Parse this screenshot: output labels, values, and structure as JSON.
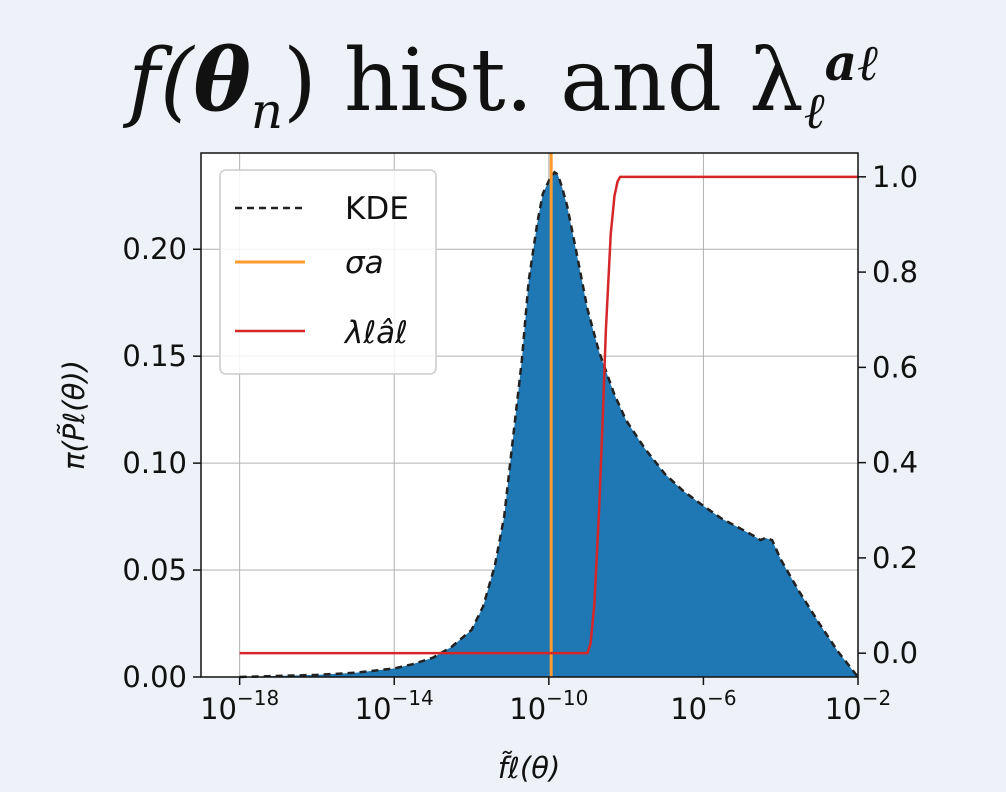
{
  "page": {
    "title_parts": [
      "f(",
      "θ",
      "n",
      ") hist. and λ",
      "ℓ",
      "a",
      "ℓ"
    ]
  },
  "colors": {
    "histogram": "#1f77b4",
    "kde": "#222222",
    "sigma": "#ff9b2e",
    "lambda": "#d62728",
    "background": "#eef2f8",
    "plot_bg": "#ffffff",
    "grid": "#b0b0b0"
  },
  "chart_data": {
    "type": "area",
    "grid": true,
    "x_scale": "log",
    "xlabel": "f̃ℓ(θ)",
    "ylabel": "π(P̃ℓ(θ))",
    "ylabel_right": "",
    "xlim": [
      1e-19,
      0.01
    ],
    "ylim": [
      0,
      0.245
    ],
    "ylim_right": [
      -0.05,
      1.05
    ],
    "x_ticks": [
      {
        "value": 1e-18,
        "label": "10",
        "exp": "−18"
      },
      {
        "value": 1e-14,
        "label": "10",
        "exp": "−14"
      },
      {
        "value": 1e-10,
        "label": "10",
        "exp": "−10"
      },
      {
        "value": 1e-06,
        "label": "10",
        "exp": "−6"
      },
      {
        "value": 0.01,
        "label": "10",
        "exp": "−2"
      }
    ],
    "y_ticks": [
      "0.00",
      "0.05",
      "0.10",
      "0.15",
      "0.20"
    ],
    "y_tick_values": [
      0,
      0.05,
      0.1,
      0.15,
      0.2
    ],
    "y_ticks_right": [
      "0.0",
      "0.2",
      "0.4",
      "0.6",
      "0.8",
      "1.0"
    ],
    "y_tick_values_right": [
      0,
      0.2,
      0.4,
      0.6,
      0.8,
      1.0
    ],
    "legend": {
      "position": "upper-left",
      "entries": [
        {
          "label": "KDE",
          "style": "dashed"
        },
        {
          "label": "σa",
          "style": "solid-orange"
        },
        {
          "label": "λℓâℓ",
          "style": "solid-red"
        }
      ]
    },
    "series": [
      {
        "name": "KDE",
        "axis": "left",
        "x": [
          1e-18,
          1e-17,
          1e-16,
          1e-15,
          1e-14,
          3e-14,
          1e-13,
          3e-13,
          1e-12,
          2e-12,
          4e-12,
          7e-12,
          1e-11,
          2e-11,
          3e-11,
          5e-11,
          7e-11,
          1e-10,
          1.4e-10,
          1.7e-10,
          2.2e-10,
          3e-10,
          5e-10,
          1e-09,
          2e-09,
          5e-09,
          1e-08,
          3e-08,
          1e-07,
          3e-07,
          1e-06,
          3e-06,
          1e-05,
          2e-05,
          3e-05,
          4e-05,
          6e-05,
          0.0001,
          0.0003,
          0.001,
          0.003,
          0.01
        ],
        "values": [
          0.0,
          0.0005,
          0.001,
          0.002,
          0.004,
          0.006,
          0.009,
          0.014,
          0.022,
          0.033,
          0.052,
          0.075,
          0.1,
          0.148,
          0.185,
          0.212,
          0.226,
          0.232,
          0.236,
          0.235,
          0.229,
          0.22,
          0.2,
          0.172,
          0.152,
          0.132,
          0.12,
          0.107,
          0.095,
          0.087,
          0.08,
          0.074,
          0.069,
          0.066,
          0.064,
          0.065,
          0.064,
          0.055,
          0.04,
          0.025,
          0.012,
          0.0
        ]
      },
      {
        "name": "σa",
        "axis": "left",
        "x": [
          1.15e-10
        ]
      },
      {
        "name": "λℓâℓ",
        "axis": "right",
        "x": [
          1e-18,
          1e-09,
          1.2e-09,
          1.5e-09,
          2e-09,
          2.5e-09,
          3e-09,
          4e-09,
          5e-09,
          6e-09,
          7e-09,
          8e-09,
          1e-08,
          0.01
        ],
        "values": [
          0.0,
          0.0,
          0.02,
          0.1,
          0.3,
          0.5,
          0.68,
          0.88,
          0.96,
          0.99,
          1.0,
          1.0,
          1.0,
          1.0
        ]
      }
    ]
  }
}
